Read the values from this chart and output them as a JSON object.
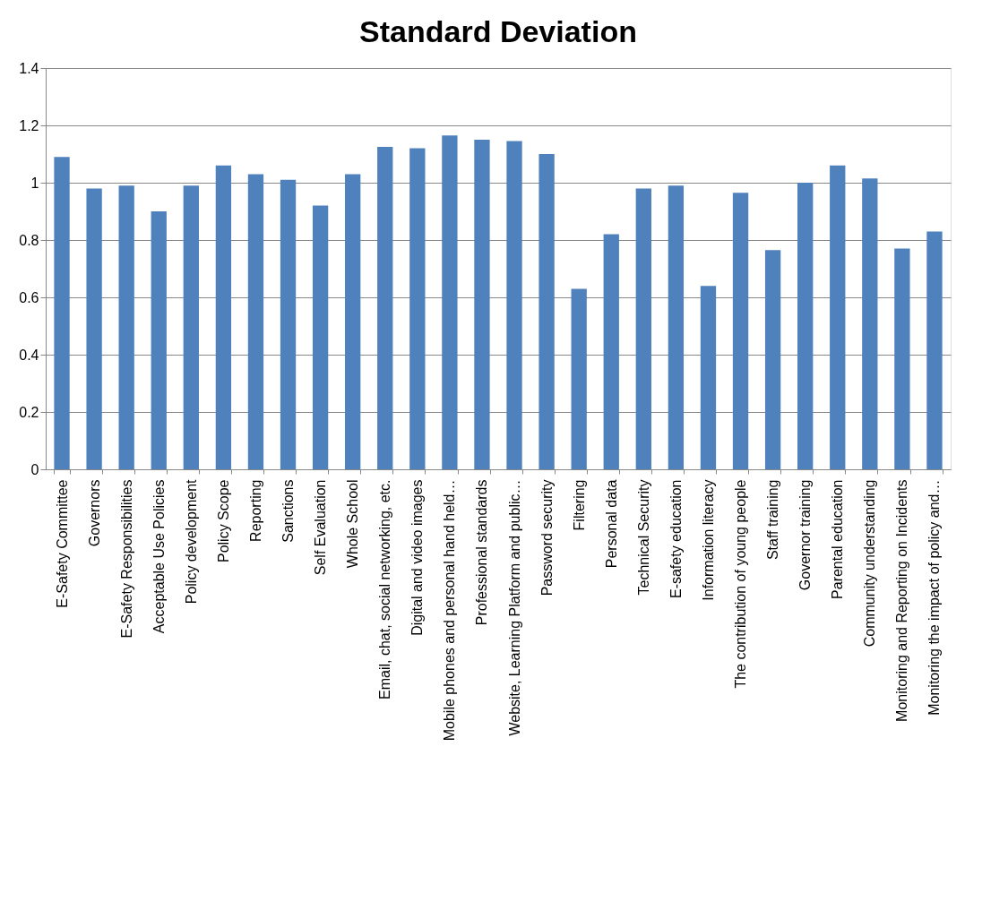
{
  "chart_data": {
    "type": "bar",
    "title": "Standard Deviation",
    "categories": [
      "E-Safety Committee",
      "Governors",
      "E-Safety Responsibilities",
      "Acceptable Use Policies",
      "Policy development",
      "Policy Scope",
      "Reporting",
      "Sanctions",
      "Self Evaluation",
      "Whole School",
      "Email, chat, social networking, etc.",
      "Digital and video images",
      "Mobile phones and personal hand held…",
      "Professional standards",
      "Website, Learning Platform and public…",
      "Password security",
      "Filtering",
      "Personal data",
      "Technical Security",
      "E-safety education",
      "Information literacy",
      "The contribution of young people",
      "Staff training",
      "Governor training",
      "Parental education",
      "Community understanding",
      "Monitoring and Reporting on Incidents",
      "Monitoring the impact of  policy and…"
    ],
    "values": [
      1.09,
      0.98,
      0.99,
      0.9,
      0.99,
      1.06,
      1.03,
      1.01,
      0.92,
      1.03,
      1.125,
      1.12,
      1.165,
      1.15,
      1.145,
      1.1,
      0.63,
      0.82,
      0.98,
      0.99,
      0.64,
      0.965,
      0.765,
      1.0,
      1.06,
      1.015,
      0.77,
      0.83
    ],
    "color": "#4f81bd",
    "ylim": [
      0,
      1.4
    ],
    "yticks": [
      0,
      0.2,
      0.4,
      0.6,
      0.8,
      1,
      1.2,
      1.4
    ],
    "grid": "y"
  }
}
